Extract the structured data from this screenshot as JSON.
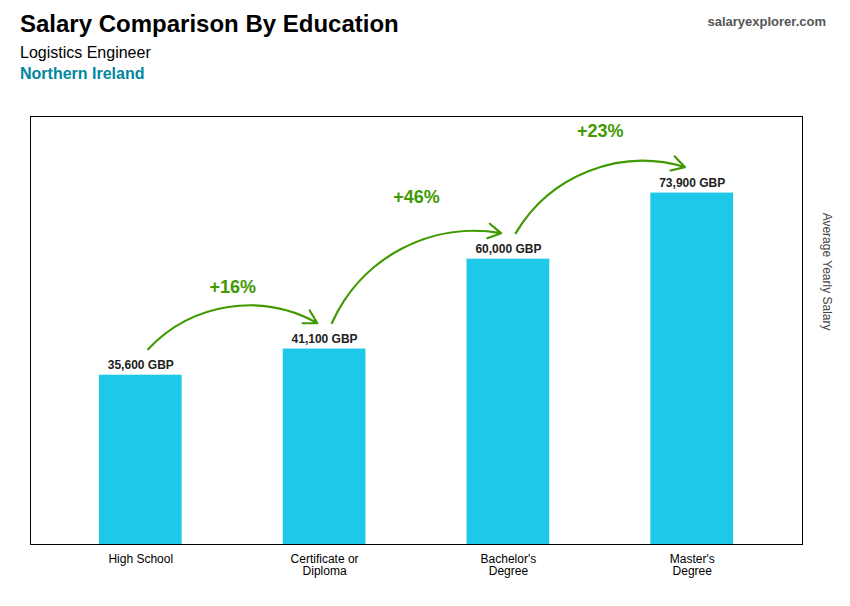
{
  "chart_data": {
    "type": "bar",
    "title": "Salary Comparison By Education",
    "subtitle": [
      "Logistics Engineer",
      "Northern Ireland"
    ],
    "ylabel": "Average Yearly Salary",
    "categories": [
      "High School",
      "Certificate or\nDiploma",
      "Bachelor's\nDegree",
      "Master's\nDegree"
    ],
    "values": [
      35600,
      41100,
      60000,
      73900
    ],
    "value_labels": [
      "35,600 GBP",
      "41,100 GBP",
      "60,000 GBP",
      "73,900 GBP"
    ],
    "data_labels": true,
    "color": "#1ec8e8",
    "ylim": [
      0,
      90000
    ],
    "yticks": [],
    "tick_labels": "x",
    "grid": false,
    "annotations": [
      {
        "text": "+16%",
        "from": "High School",
        "to": "Certificate or\nDiploma"
      },
      {
        "text": "+46%",
        "from": "Certificate or\nDiploma",
        "to": "Bachelor's\nDegree"
      },
      {
        "text": "+23%",
        "from": "Bachelor's\nDegree",
        "to": "Master's\nDegree"
      },
      {
        "text": "salaryexplorer.com"
      }
    ]
  }
}
